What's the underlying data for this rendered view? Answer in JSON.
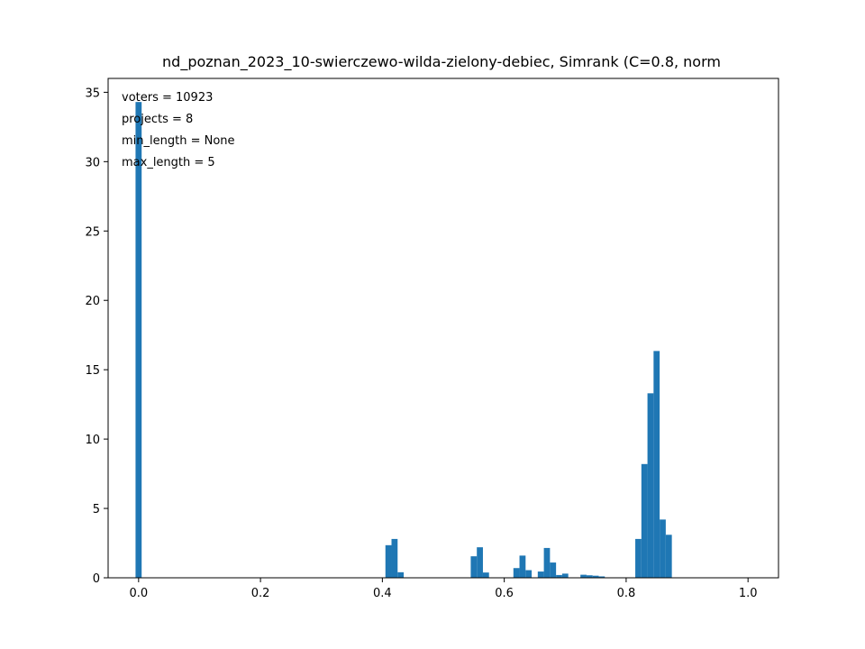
{
  "chart_data": {
    "type": "bar",
    "title": "nd_poznan_2023_10-swierczewo-wilda-zielony-debiec, Simrank (C=0.8, norm",
    "xlabel": "",
    "ylabel": "",
    "xlim": [
      -0.05,
      1.05
    ],
    "ylim": [
      0,
      36
    ],
    "xticks": [
      0.0,
      0.2,
      0.4,
      0.6,
      0.8,
      1.0
    ],
    "xtick_labels": [
      "0.0",
      "0.2",
      "0.4",
      "0.6",
      "0.8",
      "1.0"
    ],
    "yticks": [
      0,
      5,
      10,
      15,
      20,
      25,
      30,
      35
    ],
    "ytick_labels": [
      "0",
      "5",
      "10",
      "15",
      "20",
      "25",
      "30",
      "35"
    ],
    "grid": false,
    "bin_width": 0.01,
    "color": "#1f77b4",
    "annotations": [
      "voters = 10923",
      "projects = 8",
      "min_length = None",
      "max_length = 5"
    ],
    "bins": [
      {
        "x": 0.0,
        "value": 34.3
      },
      {
        "x": 0.41,
        "value": 2.35
      },
      {
        "x": 0.42,
        "value": 2.8
      },
      {
        "x": 0.43,
        "value": 0.4
      },
      {
        "x": 0.55,
        "value": 1.55
      },
      {
        "x": 0.56,
        "value": 2.2
      },
      {
        "x": 0.57,
        "value": 0.38
      },
      {
        "x": 0.62,
        "value": 0.7
      },
      {
        "x": 0.63,
        "value": 1.6
      },
      {
        "x": 0.64,
        "value": 0.55
      },
      {
        "x": 0.66,
        "value": 0.45
      },
      {
        "x": 0.67,
        "value": 2.15
      },
      {
        "x": 0.68,
        "value": 1.1
      },
      {
        "x": 0.69,
        "value": 0.2
      },
      {
        "x": 0.7,
        "value": 0.3
      },
      {
        "x": 0.73,
        "value": 0.22
      },
      {
        "x": 0.74,
        "value": 0.18
      },
      {
        "x": 0.75,
        "value": 0.15
      },
      {
        "x": 0.76,
        "value": 0.1
      },
      {
        "x": 0.82,
        "value": 2.8
      },
      {
        "x": 0.83,
        "value": 8.2
      },
      {
        "x": 0.84,
        "value": 13.3
      },
      {
        "x": 0.85,
        "value": 16.35
      },
      {
        "x": 0.86,
        "value": 4.2
      },
      {
        "x": 0.87,
        "value": 3.1
      }
    ]
  }
}
